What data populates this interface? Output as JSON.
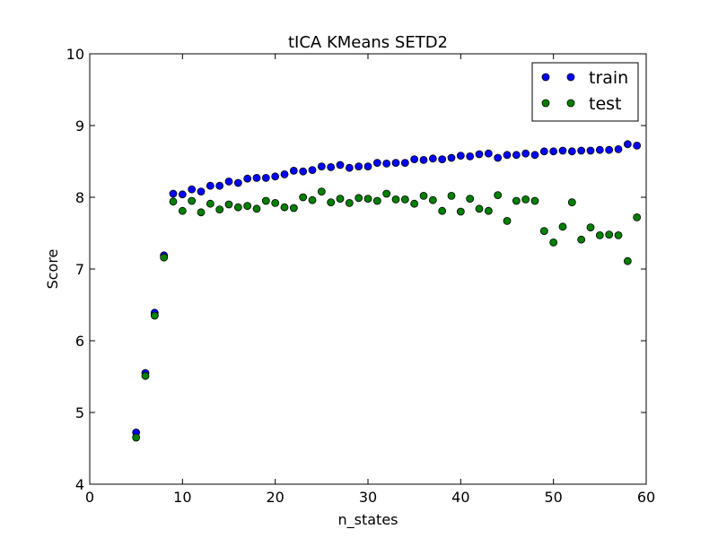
{
  "chart_data": {
    "type": "scatter",
    "title": "tICA KMeans SETD2",
    "xlabel": "n_states",
    "ylabel": "Score",
    "xlim": [
      0,
      60
    ],
    "ylim": [
      4,
      10
    ],
    "xticks": [
      0,
      10,
      20,
      30,
      40,
      50,
      60
    ],
    "yticks": [
      4,
      5,
      6,
      7,
      8,
      9,
      10
    ],
    "grid": false,
    "legend_position": "top-right",
    "x": [
      5,
      6,
      7,
      8,
      9,
      10,
      11,
      12,
      13,
      14,
      15,
      16,
      17,
      18,
      19,
      20,
      21,
      22,
      23,
      24,
      25,
      26,
      27,
      28,
      29,
      30,
      31,
      32,
      33,
      34,
      35,
      36,
      37,
      38,
      39,
      40,
      41,
      42,
      43,
      44,
      45,
      46,
      47,
      48,
      49,
      50,
      51,
      52,
      53,
      54,
      55,
      56,
      57,
      58,
      59
    ],
    "series": [
      {
        "name": "train",
        "color": "#0000ff",
        "values": [
          4.72,
          5.55,
          6.39,
          7.19,
          8.05,
          8.04,
          8.11,
          8.08,
          8.16,
          8.16,
          8.22,
          8.2,
          8.26,
          8.27,
          8.27,
          8.29,
          8.32,
          8.37,
          8.36,
          8.38,
          8.43,
          8.42,
          8.45,
          8.41,
          8.43,
          8.43,
          8.48,
          8.47,
          8.48,
          8.48,
          8.53,
          8.52,
          8.54,
          8.53,
          8.55,
          8.58,
          8.57,
          8.6,
          8.61,
          8.55,
          8.59,
          8.59,
          8.61,
          8.59,
          8.64,
          8.64,
          8.65,
          8.64,
          8.65,
          8.65,
          8.66,
          8.66,
          8.67,
          8.74,
          8.72
        ]
      },
      {
        "name": "test",
        "color": "#008000",
        "values": [
          4.65,
          5.51,
          6.35,
          7.16,
          7.94,
          7.81,
          7.95,
          7.79,
          7.91,
          7.83,
          7.9,
          7.86,
          7.88,
          7.84,
          7.95,
          7.92,
          7.86,
          7.85,
          8.0,
          7.96,
          8.08,
          7.93,
          7.98,
          7.92,
          7.99,
          7.98,
          7.95,
          8.05,
          7.97,
          7.97,
          7.91,
          8.02,
          7.96,
          7.81,
          8.02,
          7.8,
          7.98,
          7.84,
          7.81,
          8.03,
          7.67,
          7.95,
          7.97,
          7.95,
          7.53,
          7.37,
          7.59,
          7.93,
          7.41,
          7.58,
          7.47,
          7.48,
          7.47,
          7.11,
          7.72
        ]
      }
    ]
  }
}
